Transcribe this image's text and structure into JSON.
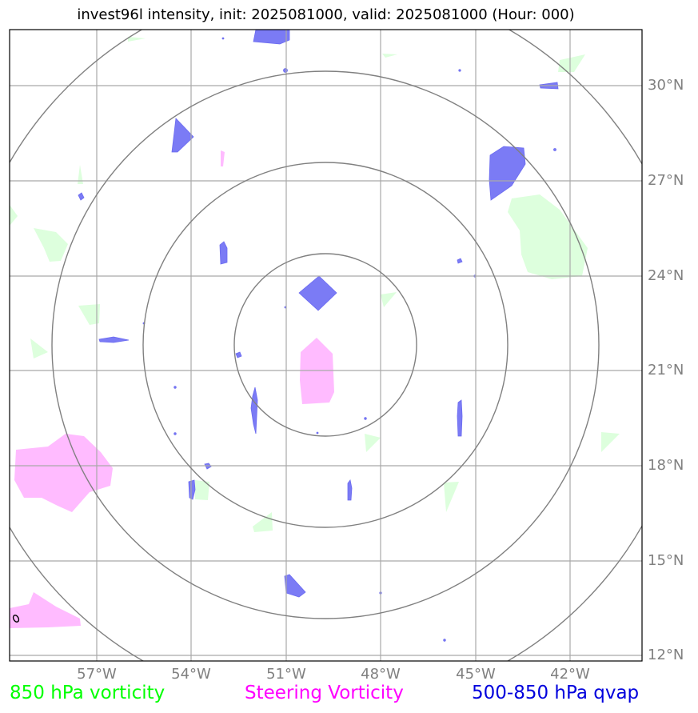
{
  "title": "invest96l intensity, init: 2025081000, valid: 2025081000 (Hour: 000)",
  "lat_labels": [
    "30°N",
    "27°N",
    "24°N",
    "21°N",
    "18°N",
    "15°N",
    "12°N"
  ],
  "lon_labels": [
    "57°W",
    "54°W",
    "51°W",
    "48°W",
    "45°W",
    "42°W"
  ],
  "legend": {
    "vorticity_850": "850 hPa vorticity",
    "steering_vorticity": "Steering Vorticity",
    "qvap": "500-850 hPa qvap"
  },
  "colors": {
    "vorticity_850": "#00ff00",
    "steering_vorticity": "#ff00ff",
    "qvap": "#0000dd",
    "green_fill": "#ddffdd",
    "pink_fill": "#ffbbff",
    "blue_fill": "#7b7bf5",
    "grid": "#a9a9a9",
    "range_ring": "#808080"
  }
}
